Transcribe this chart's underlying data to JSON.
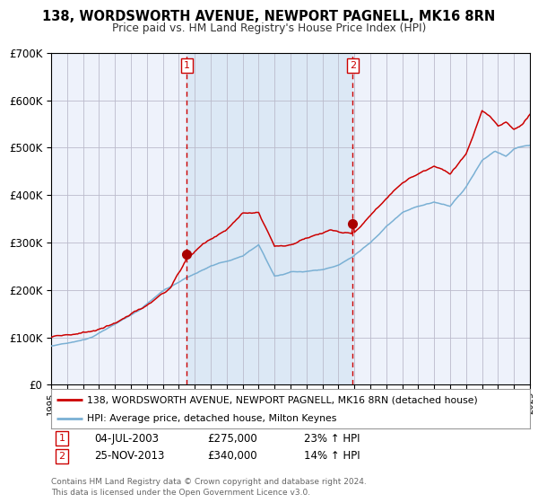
{
  "title": "138, WORDSWORTH AVENUE, NEWPORT PAGNELL, MK16 8RN",
  "subtitle": "Price paid vs. HM Land Registry's House Price Index (HPI)",
  "legend_line1": "138, WORDSWORTH AVENUE, NEWPORT PAGNELL, MK16 8RN (detached house)",
  "legend_line2": "HPI: Average price, detached house, Milton Keynes",
  "annotation1_date": "04-JUL-2003",
  "annotation1_price": "£275,000",
  "annotation1_hpi": "23% ↑ HPI",
  "annotation2_date": "25-NOV-2013",
  "annotation2_price": "£340,000",
  "annotation2_hpi": "14% ↑ HPI",
  "footer": "Contains HM Land Registry data © Crown copyright and database right 2024.\nThis data is licensed under the Open Government Licence v3.0.",
  "marker1_year": 2003.5,
  "marker2_year": 2013.9,
  "vline1_year": 2003.5,
  "vline2_year": 2013.9,
  "shade_start": 2003.5,
  "shade_end": 2013.9,
  "ylim": [
    0,
    700000
  ],
  "xlim_start": 1995,
  "xlim_end": 2025,
  "bg_color": "#ffffff",
  "plot_bg_color": "#eef2fb",
  "grid_color": "#bbbbcc",
  "red_line_color": "#cc0000",
  "blue_line_color": "#7ab0d4",
  "shade_color": "#dce8f5",
  "vline_color": "#cc0000",
  "marker_color": "#aa0000",
  "marker1_price": 275000,
  "marker2_price": 340000
}
